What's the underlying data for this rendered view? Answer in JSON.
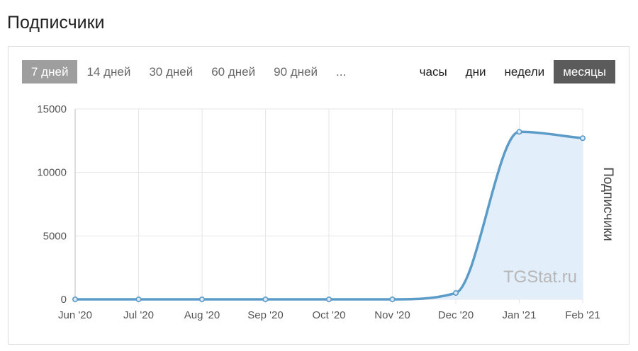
{
  "page": {
    "title": "Подписчики"
  },
  "range_buttons": [
    {
      "label": "7 дней",
      "active": true
    },
    {
      "label": "14 дней",
      "active": false
    },
    {
      "label": "30 дней",
      "active": false
    },
    {
      "label": "60 дней",
      "active": false
    },
    {
      "label": "90 дней",
      "active": false
    },
    {
      "label": "...",
      "active": false
    }
  ],
  "unit_buttons": [
    {
      "label": "часы",
      "active": false
    },
    {
      "label": "дни",
      "active": false
    },
    {
      "label": "недели",
      "active": false
    },
    {
      "label": "месяцы",
      "active": true
    }
  ],
  "colors": {
    "line": "#5b9bc8",
    "fill": "#e3eefb",
    "grid": "#e6e6e6",
    "active_range": "#9e9e9e",
    "active_unit": "#5b5b5b"
  },
  "chart_data": {
    "type": "area",
    "title": "",
    "xlabel": "",
    "ylabel": "Подписчики",
    "watermark": "TGStat.ru",
    "categories": [
      "Jun '20",
      "Jul '20",
      "Aug '20",
      "Sep '20",
      "Oct '20",
      "Nov '20",
      "Dec '20",
      "Jan '21",
      "Feb '21"
    ],
    "series": [
      {
        "values": [
          0,
          0,
          0,
          0,
          0,
          0,
          500,
          13200,
          12700
        ]
      }
    ],
    "ylim": [
      0,
      15000
    ],
    "yticks": [
      0,
      5000,
      10000,
      15000
    ],
    "grid": true,
    "legend": "none"
  }
}
